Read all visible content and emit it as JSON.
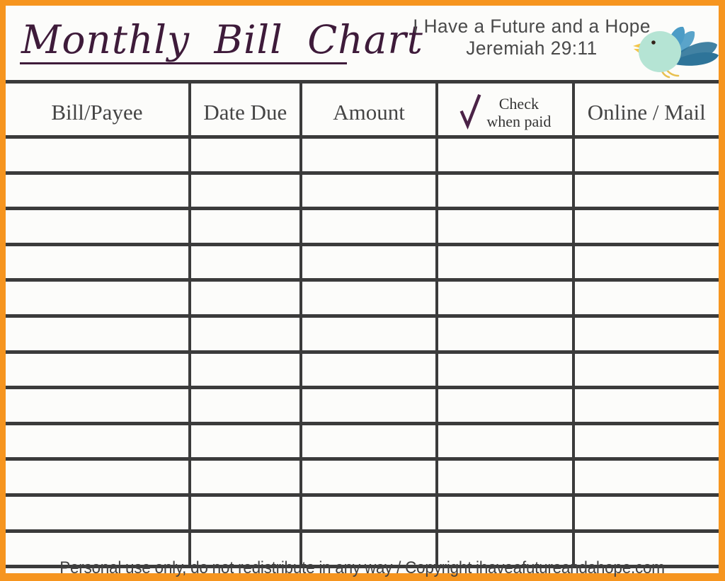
{
  "page": {
    "title": "Monthly Bill Chart",
    "tagline": {
      "line1": "I Have a Future and a Hope",
      "line2": "Jeremiah 29:11"
    },
    "footer_text": "Personal use only, do not redistribute in any way / Copyright ihaveafutureandahope.com"
  },
  "icons": {
    "checkmark": "√",
    "bird": "bluebird-illustration"
  },
  "table": {
    "columns": [
      {
        "label": "Bill/Payee"
      },
      {
        "label": "Date Due"
      },
      {
        "label": "Amount"
      },
      {
        "label": "Check when paid",
        "line1": "Check",
        "line2": "when paid",
        "icon": "checkmark-icon"
      },
      {
        "label": "Online / Mail"
      }
    ],
    "row_count": 12,
    "rows": [
      [
        "",
        "",
        "",
        "",
        ""
      ],
      [
        "",
        "",
        "",
        "",
        ""
      ],
      [
        "",
        "",
        "",
        "",
        ""
      ],
      [
        "",
        "",
        "",
        "",
        ""
      ],
      [
        "",
        "",
        "",
        "",
        ""
      ],
      [
        "",
        "",
        "",
        "",
        ""
      ],
      [
        "",
        "",
        "",
        "",
        ""
      ],
      [
        "",
        "",
        "",
        "",
        ""
      ],
      [
        "",
        "",
        "",
        "",
        ""
      ],
      [
        "",
        "",
        "",
        "",
        ""
      ],
      [
        "",
        "",
        "",
        "",
        ""
      ],
      [
        "",
        "",
        "",
        "",
        ""
      ]
    ]
  },
  "colors": {
    "border_color": "#F6951F",
    "page_bg": "#FCFCFA",
    "title_color": "#3E1B3A",
    "tagline_color": "#4A4A4A",
    "grid_color": "#3B3B3B",
    "header_text": "#454545",
    "checkmark_color": "#4B2347",
    "footer_color": "#414141",
    "bird_body": "#B5E4D4",
    "bird_wing": "#4C9CC6",
    "bird_tail": "#2E7499",
    "bird_beak": "#F3C64A",
    "bird_leg": "#E8C050",
    "bird_eye": "#33221A"
  }
}
